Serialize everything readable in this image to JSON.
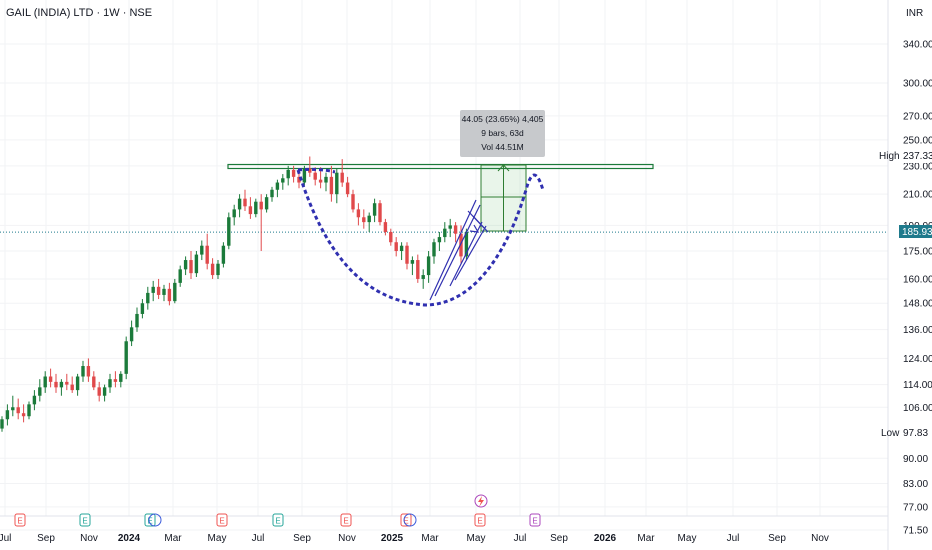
{
  "header": {
    "title": "GAIL (INDIA) LTD · 1W · NSE",
    "currency": "INR"
  },
  "price_axis": {
    "ticks": [
      "340.00",
      "300.00",
      "270.00",
      "250.00",
      "230.00",
      "210.00",
      "190.00",
      "175.00",
      "160.00",
      "148.00",
      "136.00",
      "124.00",
      "114.00",
      "106.00",
      "97.83",
      "90.00",
      "83.00",
      "77.00",
      "71.50"
    ]
  },
  "badges": {
    "high_label": "High",
    "high_value": "237.33",
    "low_label": "Low",
    "low_value": "97.83",
    "last_value": "185.93"
  },
  "measure_box": {
    "line1": "44.05 (23.65%) 4,405",
    "line2": "9 bars, 63d",
    "line3": "Vol 44.51M"
  },
  "events": {
    "earnings_label": "E",
    "dividend_label": "D"
  },
  "colors": {
    "up": "#1b7a3a",
    "down": "#e0494b",
    "projection": "#3030b0",
    "resistance": "#1b7a3a",
    "event_earn": "#ef5350",
    "event_div": "#26a69a",
    "event_other": "#ab47bc"
  },
  "chart_data": {
    "type": "candlestick",
    "title": "GAIL (INDIA) LTD · 1W · NSE",
    "y_scale": "log",
    "ylim": [
      70,
      390
    ],
    "x_ticks": [
      "Jul",
      "Sep",
      "Nov",
      "2024",
      "Mar",
      "May",
      "Jul",
      "Sep",
      "Nov",
      "2025",
      "Mar",
      "May",
      "Jul",
      "Sep",
      "2026",
      "Mar",
      "May",
      "Jul",
      "Sep",
      "Nov"
    ],
    "resistance_level": 229,
    "annotations": [
      "High 237.33",
      "Low 97.83",
      "185.93"
    ],
    "series": [
      {
        "name": "GAIL (INDIA) LTD",
        "ohlc": [
          [
            99,
            103,
            98,
            102
          ],
          [
            102,
            107,
            100,
            105
          ],
          [
            105,
            110,
            103,
            106
          ],
          [
            106,
            109,
            102,
            104
          ],
          [
            104,
            107,
            101,
            103
          ],
          [
            103,
            108,
            102,
            107
          ],
          [
            107,
            112,
            105,
            110
          ],
          [
            110,
            116,
            108,
            113
          ],
          [
            113,
            119,
            111,
            117
          ],
          [
            117,
            120,
            113,
            115
          ],
          [
            115,
            118,
            111,
            113
          ],
          [
            113,
            116,
            110,
            115
          ],
          [
            115,
            118,
            112,
            114
          ],
          [
            114,
            117,
            111,
            112
          ],
          [
            112,
            118,
            110,
            117
          ],
          [
            117,
            123,
            115,
            121
          ],
          [
            121,
            124,
            115,
            117
          ],
          [
            117,
            119,
            112,
            113
          ],
          [
            113,
            115,
            108,
            110
          ],
          [
            110,
            114,
            108,
            113
          ],
          [
            113,
            118,
            111,
            116
          ],
          [
            116,
            119,
            113,
            115
          ],
          [
            115,
            119,
            113,
            118
          ],
          [
            118,
            133,
            116,
            131
          ],
          [
            131,
            140,
            129,
            137
          ],
          [
            137,
            146,
            135,
            143
          ],
          [
            143,
            150,
            141,
            148
          ],
          [
            148,
            156,
            145,
            153
          ],
          [
            153,
            159,
            149,
            156
          ],
          [
            156,
            160,
            150,
            152
          ],
          [
            152,
            157,
            149,
            155
          ],
          [
            155,
            158,
            147,
            149
          ],
          [
            149,
            160,
            148,
            158
          ],
          [
            158,
            167,
            156,
            165
          ],
          [
            165,
            172,
            162,
            170
          ],
          [
            170,
            175,
            160,
            163
          ],
          [
            163,
            175,
            161,
            173
          ],
          [
            173,
            181,
            170,
            178
          ],
          [
            178,
            185,
            165,
            168
          ],
          [
            168,
            171,
            160,
            162
          ],
          [
            162,
            170,
            160,
            168
          ],
          [
            168,
            180,
            166,
            178
          ],
          [
            178,
            198,
            176,
            195
          ],
          [
            195,
            203,
            190,
            200
          ],
          [
            200,
            210,
            195,
            207
          ],
          [
            207,
            213,
            199,
            202
          ],
          [
            202,
            208,
            194,
            197
          ],
          [
            197,
            207,
            195,
            205
          ],
          [
            205,
            210,
            175,
            200
          ],
          [
            200,
            210,
            198,
            208
          ],
          [
            208,
            215,
            205,
            213
          ],
          [
            213,
            220,
            208,
            218
          ],
          [
            218,
            224,
            213,
            221
          ],
          [
            221,
            230,
            216,
            227
          ],
          [
            227,
            230,
            218,
            222
          ],
          [
            222,
            226,
            214,
            218
          ],
          [
            218,
            230,
            216,
            228
          ],
          [
            228,
            237,
            222,
            225
          ],
          [
            225,
            229,
            216,
            220
          ],
          [
            220,
            229,
            214,
            218
          ],
          [
            218,
            225,
            212,
            222
          ],
          [
            222,
            230,
            205,
            210
          ],
          [
            210,
            228,
            204,
            225
          ],
          [
            225,
            235,
            215,
            218
          ],
          [
            218,
            222,
            208,
            210
          ],
          [
            210,
            213,
            198,
            200
          ],
          [
            200,
            204,
            190,
            195
          ],
          [
            195,
            200,
            188,
            192
          ],
          [
            192,
            198,
            186,
            196
          ],
          [
            196,
            207,
            192,
            204
          ],
          [
            204,
            206,
            190,
            192
          ],
          [
            192,
            194,
            184,
            186
          ],
          [
            186,
            188,
            178,
            180
          ],
          [
            180,
            183,
            172,
            175
          ],
          [
            175,
            180,
            170,
            178
          ],
          [
            178,
            180,
            165,
            168
          ],
          [
            168,
            172,
            162,
            170
          ],
          [
            170,
            173,
            158,
            160
          ],
          [
            160,
            165,
            155,
            162
          ],
          [
            162,
            175,
            158,
            172
          ],
          [
            172,
            182,
            168,
            180
          ],
          [
            180,
            186,
            175,
            183
          ],
          [
            183,
            192,
            180,
            188
          ],
          [
            188,
            194,
            183,
            190
          ],
          [
            190,
            192,
            180,
            185
          ],
          [
            185,
            190,
            168,
            172
          ],
          [
            172,
            188,
            170,
            186
          ]
        ]
      }
    ]
  }
}
